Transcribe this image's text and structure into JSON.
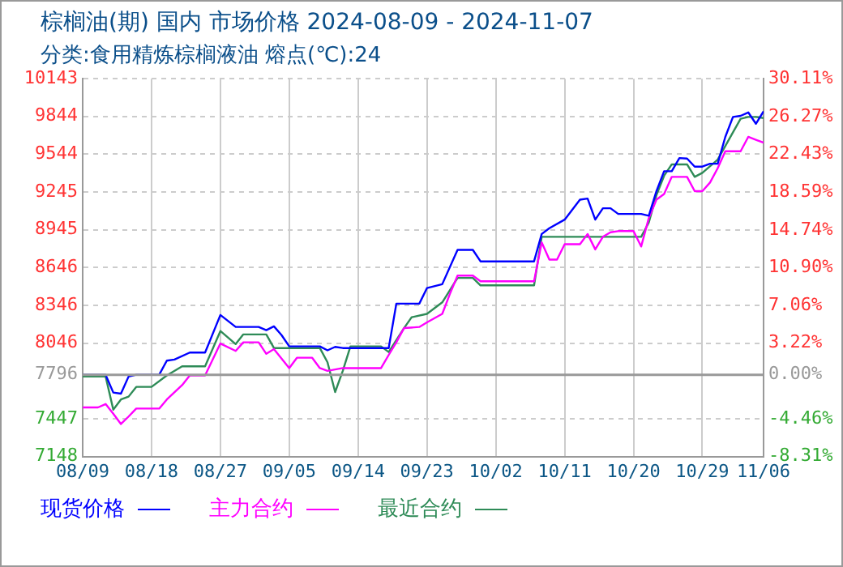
{
  "chart_data": {
    "type": "line",
    "title": "棕榈油(期) 国内 市场价格 2024-08-09 - 2024-11-07",
    "subtitle": "分类:食用精炼棕榈液油 熔点(℃):24",
    "xlim": [
      "2024-08-09",
      "2024-11-06"
    ],
    "xticks": [
      {
        "value": "2024-08-09",
        "label": "08/09"
      },
      {
        "value": "2024-08-18",
        "label": "08/18"
      },
      {
        "value": "2024-08-27",
        "label": "08/27"
      },
      {
        "value": "2024-09-05",
        "label": "09/05"
      },
      {
        "value": "2024-09-14",
        "label": "09/14"
      },
      {
        "value": "2024-09-23",
        "label": "09/23"
      },
      {
        "value": "2024-10-02",
        "label": "10/02"
      },
      {
        "value": "2024-10-11",
        "label": "10/11"
      },
      {
        "value": "2024-10-20",
        "label": "10/20"
      },
      {
        "value": "2024-10-29",
        "label": "10/29"
      },
      {
        "value": "2024-11-06",
        "label": "11/06"
      }
    ],
    "ylim": [
      7148,
      10143
    ],
    "yticks": [
      7148,
      7447,
      7796,
      8046,
      8346,
      8646,
      8945,
      9245,
      9544,
      9844,
      10143
    ],
    "y2lim": [
      -8.31,
      30.11
    ],
    "y2ticks": [
      {
        "value": -8.31,
        "label": "-8.31%"
      },
      {
        "value": -4.46,
        "label": "-4.46%"
      },
      {
        "value": 0,
        "label": "0.00%"
      },
      {
        "value": 3.22,
        "label": "3.22%"
      },
      {
        "value": 7.06,
        "label": "7.06%"
      },
      {
        "value": 10.9,
        "label": "10.90%"
      },
      {
        "value": 14.74,
        "label": "14.74%"
      },
      {
        "value": 18.59,
        "label": "18.59%"
      },
      {
        "value": 22.43,
        "label": "22.43%"
      },
      {
        "value": 26.27,
        "label": "26.27%"
      },
      {
        "value": 30.11,
        "label": "30.11%"
      }
    ],
    "ref_lines": [
      {
        "axis": "y",
        "value": 7796,
        "color": "#999999"
      }
    ],
    "grid": true,
    "legend": "bottom",
    "marker": "none",
    "line_style": "solid",
    "series": [
      {
        "name": "现货价格",
        "color": "#0000ff",
        "x": [
          "2024-08-09",
          "2024-08-12",
          "2024-08-13",
          "2024-08-14",
          "2024-08-15",
          "2024-08-16",
          "2024-08-19",
          "2024-08-20",
          "2024-08-21",
          "2024-08-23",
          "2024-08-25",
          "2024-08-27",
          "2024-08-29",
          "2024-09-01",
          "2024-09-02",
          "2024-09-03",
          "2024-09-04",
          "2024-09-05",
          "2024-09-09",
          "2024-09-10",
          "2024-09-11",
          "2024-09-12",
          "2024-09-18",
          "2024-09-19",
          "2024-09-22",
          "2024-09-23",
          "2024-09-25",
          "2024-09-27",
          "2024-09-29",
          "2024-09-30",
          "2024-10-07",
          "2024-10-08",
          "2024-10-09",
          "2024-10-11",
          "2024-10-13",
          "2024-10-14",
          "2024-10-15",
          "2024-10-16",
          "2024-10-17",
          "2024-10-18",
          "2024-10-21",
          "2024-10-22",
          "2024-10-23",
          "2024-10-24",
          "2024-10-25",
          "2024-10-26",
          "2024-10-27",
          "2024-10-28",
          "2024-10-29",
          "2024-10-30",
          "2024-10-31",
          "2024-11-01",
          "2024-11-02",
          "2024-11-03",
          "2024-11-04",
          "2024-11-05",
          "2024-11-06"
        ],
        "values": [
          7796,
          7796,
          7655,
          7646,
          7782,
          7796,
          7796,
          7908,
          7917,
          7972,
          7972,
          8270,
          8175,
          8175,
          8150,
          8180,
          8110,
          8021,
          8021,
          7990,
          8017,
          8008,
          8008,
          8360,
          8360,
          8483,
          8514,
          8786,
          8786,
          8695,
          8695,
          8912,
          8958,
          9026,
          9184,
          9193,
          9026,
          9116,
          9116,
          9071,
          9071,
          9057,
          9252,
          9410,
          9410,
          9514,
          9510,
          9446,
          9446,
          9469,
          9469,
          9682,
          9840,
          9849,
          9876,
          9786,
          9885
        ]
      },
      {
        "name": "主力合约",
        "color": "#ff00ff",
        "x": [
          "2024-08-09",
          "2024-08-11",
          "2024-08-12",
          "2024-08-13",
          "2024-08-14",
          "2024-08-15",
          "2024-08-16",
          "2024-08-19",
          "2024-08-20",
          "2024-08-22",
          "2024-08-23",
          "2024-08-25",
          "2024-08-27",
          "2024-08-29",
          "2024-08-30",
          "2024-09-01",
          "2024-09-02",
          "2024-09-03",
          "2024-09-05",
          "2024-09-06",
          "2024-09-08",
          "2024-09-09",
          "2024-09-10",
          "2024-09-12",
          "2024-09-17",
          "2024-09-18",
          "2024-09-19",
          "2024-09-20",
          "2024-09-22",
          "2024-09-23",
          "2024-09-25",
          "2024-09-26",
          "2024-09-27",
          "2024-09-29",
          "2024-09-30",
          "2024-10-07",
          "2024-10-08",
          "2024-10-09",
          "2024-10-10",
          "2024-10-11",
          "2024-10-13",
          "2024-10-14",
          "2024-10-15",
          "2024-10-16",
          "2024-10-17",
          "2024-10-18",
          "2024-10-20",
          "2024-10-21",
          "2024-10-22",
          "2024-10-23",
          "2024-10-24",
          "2024-10-25",
          "2024-10-27",
          "2024-10-28",
          "2024-10-29",
          "2024-10-30",
          "2024-10-31",
          "2024-11-01",
          "2024-11-03",
          "2024-11-04",
          "2024-11-05",
          "2024-11-06"
        ],
        "values": [
          7537,
          7537,
          7564,
          7487,
          7406,
          7465,
          7528,
          7528,
          7600,
          7714,
          7791,
          7791,
          8044,
          7985,
          8053,
          8053,
          7962,
          7999,
          7849,
          7931,
          7931,
          7849,
          7827,
          7849,
          7849,
          7953,
          8053,
          8166,
          8175,
          8211,
          8279,
          8437,
          8582,
          8582,
          8537,
          8537,
          8845,
          8709,
          8709,
          8831,
          8831,
          8912,
          8790,
          8890,
          8926,
          8935,
          8935,
          8813,
          9039,
          9184,
          9229,
          9365,
          9365,
          9252,
          9252,
          9320,
          9433,
          9568,
          9568,
          9682,
          9659,
          9636
        ]
      },
      {
        "name": "最近合约",
        "color": "#2e8b57",
        "x": [
          "2024-08-09",
          "2024-08-12",
          "2024-08-13",
          "2024-08-14",
          "2024-08-15",
          "2024-08-16",
          "2024-08-18",
          "2024-08-20",
          "2024-08-22",
          "2024-08-25",
          "2024-08-27",
          "2024-08-29",
          "2024-08-30",
          "2024-09-02",
          "2024-09-03",
          "2024-09-09",
          "2024-09-10",
          "2024-09-11",
          "2024-09-12",
          "2024-09-13",
          "2024-09-17",
          "2024-09-18",
          "2024-09-20",
          "2024-09-21",
          "2024-09-23",
          "2024-09-25",
          "2024-09-27",
          "2024-09-29",
          "2024-09-30",
          "2024-10-07",
          "2024-10-08",
          "2024-10-21",
          "2024-10-22",
          "2024-10-23",
          "2024-10-24",
          "2024-10-25",
          "2024-10-27",
          "2024-10-28",
          "2024-10-29",
          "2024-10-31",
          "2024-11-02",
          "2024-11-03",
          "2024-11-04",
          "2024-11-05",
          "2024-11-06"
        ],
        "values": [
          7782,
          7782,
          7519,
          7600,
          7623,
          7700,
          7700,
          7791,
          7863,
          7863,
          8143,
          8039,
          8116,
          8116,
          8008,
          8008,
          7895,
          7659,
          7827,
          8021,
          8021,
          7976,
          8166,
          8252,
          8279,
          8370,
          8564,
          8564,
          8505,
          8505,
          8890,
          8890,
          9003,
          9220,
          9374,
          9464,
          9464,
          9365,
          9397,
          9501,
          9718,
          9826,
          9840,
          9840,
          9831
        ]
      }
    ]
  }
}
